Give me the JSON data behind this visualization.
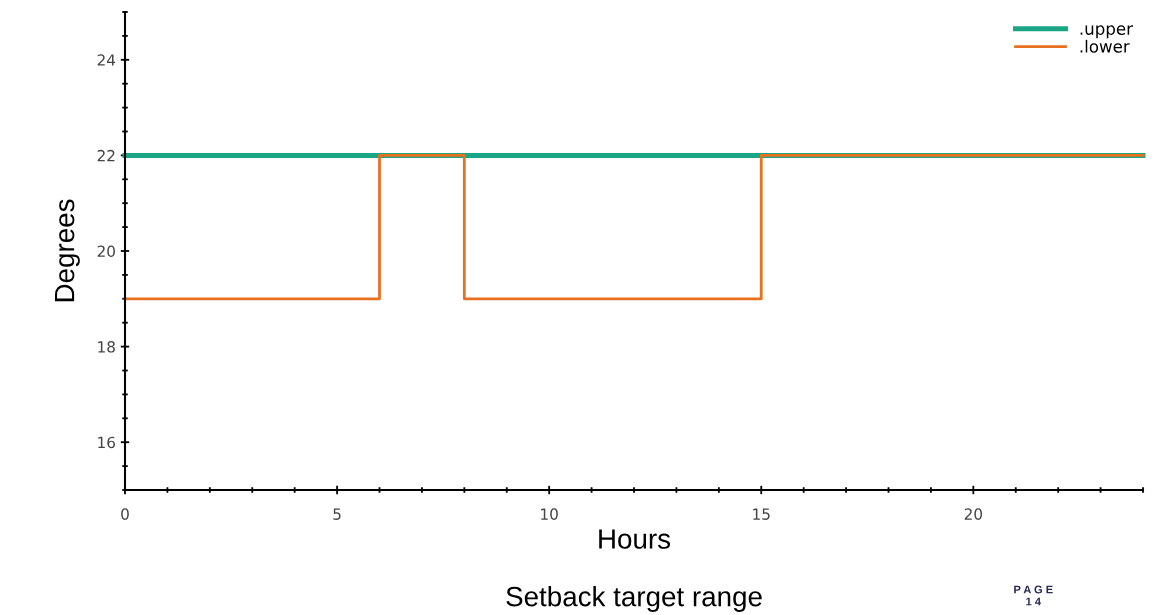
{
  "chart_data": {
    "type": "step",
    "title": "Setback target range",
    "xlabel": "Hours",
    "ylabel": "Degrees",
    "annotations": [
      "P A G E\n1 4"
    ],
    "series": [
      {
        "name": ".upper",
        "color": "#1aa585",
        "x": [
          0,
          24
        ],
        "values": [
          22,
          22
        ]
      },
      {
        "name": ".lower",
        "color": "#e8711f",
        "x": [
          0,
          6,
          8,
          15,
          24
        ],
        "values": [
          19,
          22,
          19,
          22,
          22
        ]
      }
    ],
    "xlim": [
      0,
      24
    ],
    "xticks": [
      0,
      5,
      10,
      15,
      20
    ],
    "ylim": [
      15,
      25
    ],
    "yticks": [
      16,
      18,
      20,
      22,
      24
    ],
    "grid": false,
    "legend": "top right",
    "line_style": "solid",
    "marker": "none"
  }
}
